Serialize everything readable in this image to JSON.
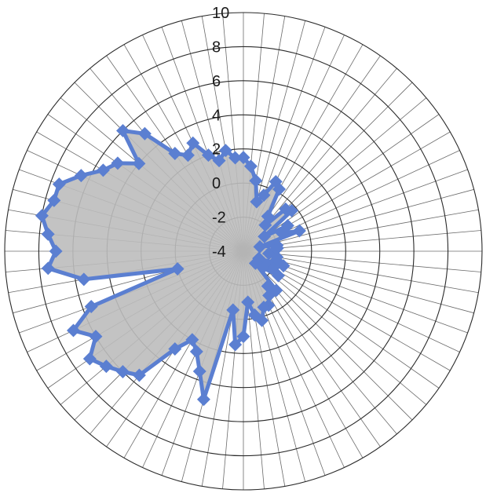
{
  "chart_data": {
    "type": "radar",
    "title": "",
    "r_min": -4,
    "r_max": 10,
    "r_step": 2,
    "r_ticks": [
      "10",
      "8",
      "6",
      "4",
      "2",
      "0",
      "-2",
      "-4"
    ],
    "spokes": 72,
    "grid": true,
    "legend": "none",
    "series": [
      {
        "color": "#5b7fd1",
        "fill": "#bdbdbd",
        "values": [
          1.5,
          1.0,
          0.2,
          -1.0,
          -0.5,
          0.5,
          0.2,
          -1.5,
          -2.0,
          -0.5,
          -0.3,
          -2.5,
          -1.0,
          -1.5,
          -0.5,
          -3.0,
          -2.0,
          -2.0,
          -2.2,
          -2.5,
          -2.0,
          -2.0,
          -1.5,
          -3.0,
          -2.0,
          -1.5,
          -2.5,
          -3.0,
          -1.0,
          -1.5,
          -1.0,
          -0.5,
          -0.5,
          0.2,
          -0.2,
          -1.0,
          1.0,
          1.5,
          -0.5,
          5.0,
          3.5,
          2.5,
          2.0,
          3.0,
          5.5,
          6.0,
          6.5,
          7.0,
          6.0,
          7.0,
          5.5,
          0.0,
          5.5,
          7.5,
          7.0,
          7.5,
          8.0,
          7.5,
          7.5,
          6.5,
          5.5,
          5.0,
          4.0,
          6.0,
          5.0,
          3.0,
          2.5,
          3.0,
          2.0,
          1.5,
          2.0,
          1.5
        ]
      }
    ]
  }
}
